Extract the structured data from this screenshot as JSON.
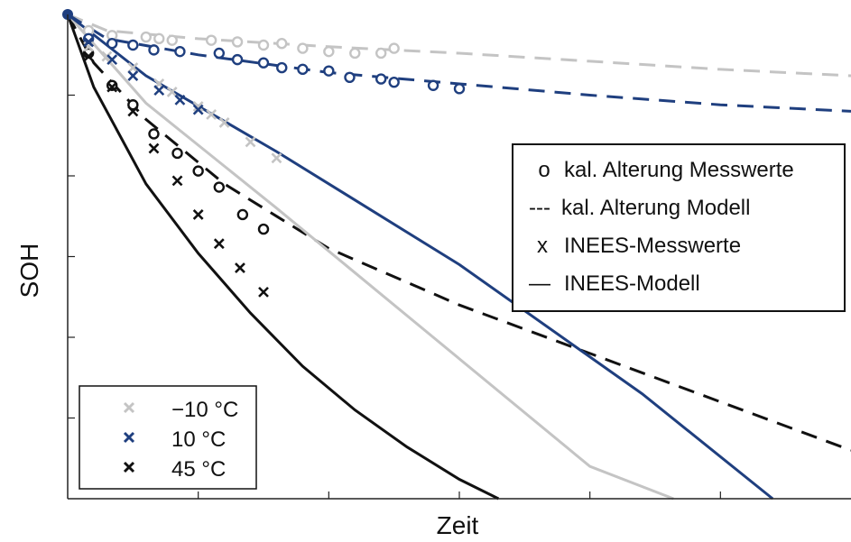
{
  "chart_data": {
    "type": "line",
    "xlabel": "Zeit",
    "ylabel": "SOH",
    "xlim": [
      0,
      300
    ],
    "ylim": [
      0,
      300
    ],
    "grid": false,
    "colors": {
      "neg10": "#c4c4c4",
      "pos10": "#1f3f7f",
      "pos45": "#111111"
    },
    "temperature_legend": {
      "placement": "bottom-left",
      "entries": [
        {
          "label": "−10 °C",
          "color": "#c4c4c4"
        },
        {
          "label": "10 °C",
          "color": "#1f3f7f"
        },
        {
          "label": "45 °C",
          "color": "#111111"
        }
      ]
    },
    "style_legend": {
      "placement": "right",
      "entries": [
        {
          "glyph": "o",
          "label": "kal. Alterung Messwerte"
        },
        {
          "glyph": "---",
          "label": "kal. Alterung Modell"
        },
        {
          "glyph": "x",
          "label": "INEES-Messwerte"
        },
        {
          "glyph": "—",
          "label": "INEES-Modell"
        }
      ]
    },
    "start_point": {
      "x": 0,
      "y": 300
    },
    "series": [
      {
        "group": "kal_model",
        "temp": "neg10",
        "style": "dashed",
        "x": [
          0,
          15,
          50,
          100,
          150,
          200,
          250,
          300
        ],
        "y": [
          300,
          290,
          285,
          280,
          276,
          271,
          266,
          262
        ]
      },
      {
        "group": "kal_meas",
        "temp": "neg10",
        "style": "circle",
        "x": [
          8,
          17,
          30,
          35,
          40,
          55,
          65,
          75,
          82,
          90,
          100,
          110,
          120,
          125
        ],
        "y": [
          290,
          287,
          286,
          285,
          284,
          284,
          283,
          281,
          282,
          279,
          277,
          276,
          276,
          279
        ]
      },
      {
        "group": "kal_model",
        "temp": "pos10",
        "style": "dashed",
        "x": [
          0,
          15,
          50,
          100,
          150,
          200,
          250,
          300
        ],
        "y": [
          300,
          285,
          275,
          264,
          257,
          250,
          244,
          240
        ]
      },
      {
        "group": "kal_meas",
        "temp": "pos10",
        "style": "circle",
        "x": [
          8,
          17,
          25,
          33,
          43,
          58,
          65,
          75,
          82,
          90,
          100,
          108,
          120,
          125,
          140,
          150
        ],
        "y": [
          285,
          282,
          281,
          278,
          277,
          276,
          272,
          270,
          267,
          266,
          265,
          261,
          260,
          258,
          256,
          254
        ]
      },
      {
        "group": "inees_model",
        "temp": "neg10",
        "style": "solid",
        "x": [
          0,
          30,
          80,
          140,
          200,
          232
        ],
        "y": [
          300,
          245,
          180,
          100,
          20,
          0
        ]
      },
      {
        "group": "inees_meas",
        "temp": "neg10",
        "style": "cross",
        "x": [
          8,
          15,
          25,
          35,
          40,
          50,
          55,
          60,
          70,
          80
        ],
        "y": [
          280,
          274,
          267,
          257,
          252,
          243,
          238,
          233,
          221,
          211
        ]
      },
      {
        "group": "inees_model",
        "temp": "pos10",
        "style": "solid",
        "x": [
          0,
          30,
          80,
          150,
          220,
          270
        ],
        "y": [
          300,
          262,
          215,
          145,
          65,
          0
        ]
      },
      {
        "group": "inees_meas",
        "temp": "pos10",
        "style": "cross",
        "x": [
          8,
          17,
          25,
          35,
          43,
          50
        ],
        "y": [
          283,
          272,
          262,
          253,
          247,
          241
        ]
      },
      {
        "group": "kal_model",
        "temp": "pos45",
        "style": "dashed",
        "x": [
          0,
          10,
          30,
          60,
          80,
          100,
          150,
          200,
          250,
          300
        ],
        "y": [
          300,
          270,
          235,
          195,
          175,
          155,
          120,
          90,
          60,
          30
        ]
      },
      {
        "group": "kal_meas",
        "temp": "pos45",
        "style": "circle",
        "x": [
          8,
          17,
          25,
          33,
          42,
          50,
          58,
          67,
          75
        ],
        "y": [
          276,
          256,
          244,
          226,
          214,
          203,
          193,
          176,
          167
        ]
      },
      {
        "group": "inees_model",
        "temp": "pos45",
        "style": "solid",
        "x": [
          0,
          10,
          30,
          50,
          70,
          90,
          110,
          130,
          150,
          165
        ],
        "y": [
          300,
          255,
          195,
          152,
          115,
          82,
          55,
          32,
          12,
          0
        ]
      },
      {
        "group": "inees_meas",
        "temp": "pos45",
        "style": "cross",
        "x": [
          8,
          17,
          25,
          33,
          42,
          50,
          58,
          66,
          75
        ],
        "y": [
          274,
          255,
          240,
          217,
          197,
          176,
          158,
          143,
          128
        ]
      }
    ]
  }
}
